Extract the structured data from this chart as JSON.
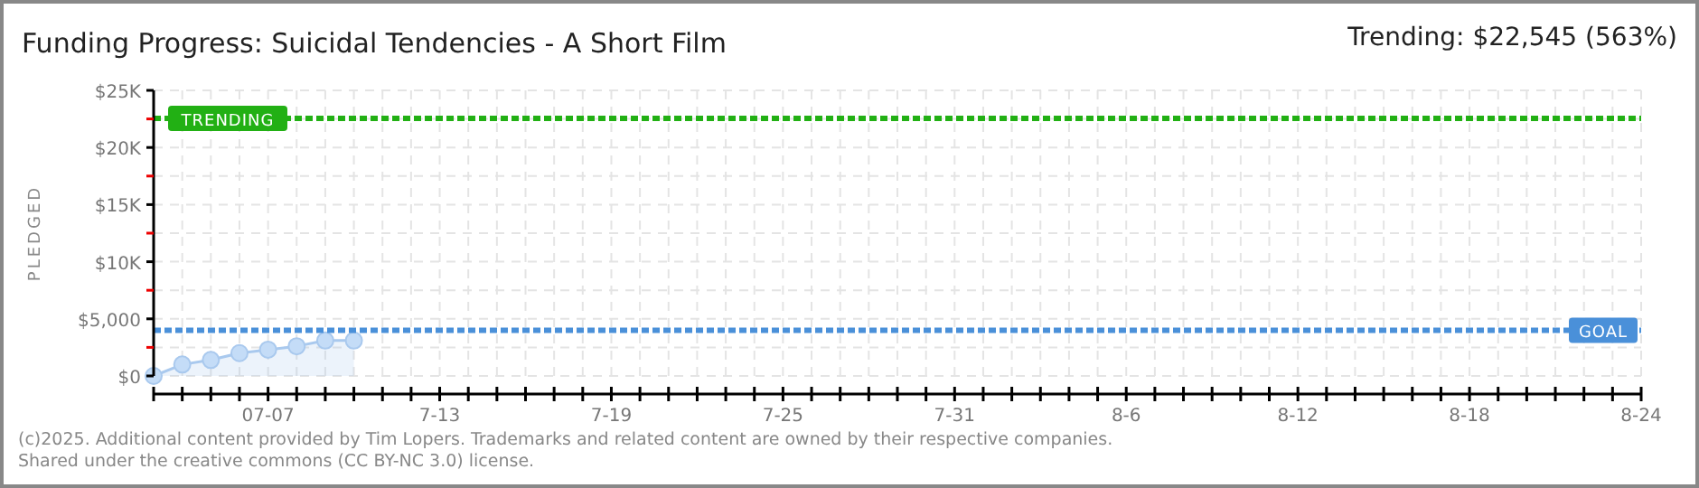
{
  "chart_data": {
    "type": "area",
    "title": "Funding Progress: Suicidal Tendencies - A Short Film",
    "subtitle": "Trending: $22,545 (563%)",
    "ylabel": "PLEDGED",
    "x": [
      "--07-03",
      "--07-04",
      "--07-05",
      "--07-06",
      "--07-07",
      "--07-08",
      "--07-09",
      "--07-10"
    ],
    "series": [
      {
        "color": "#a9c9ee",
        "values": [
          0,
          1000,
          1400,
          2000,
          2300,
          2600,
          3100,
          3100
        ]
      }
    ],
    "marker": "circle",
    "grid": true,
    "xlim": [
      "--07-03",
      "--08-24"
    ],
    "xticks": [
      {
        "value": "--07-03",
        "label": null
      },
      {
        "value": "--07-04",
        "label": null
      },
      {
        "value": "--07-05",
        "label": null
      },
      {
        "value": "--07-06",
        "label": null
      },
      {
        "value": "--07-07",
        "label": "07-07"
      },
      {
        "value": "--07-08",
        "label": null
      },
      {
        "value": "--07-09",
        "label": null
      },
      {
        "value": "--07-10",
        "label": null
      },
      {
        "value": "--07-11",
        "label": null
      },
      {
        "value": "--07-12",
        "label": null
      },
      {
        "value": "--07-13",
        "label": "7-13"
      },
      {
        "value": "--07-14",
        "label": null
      },
      {
        "value": "--07-15",
        "label": null
      },
      {
        "value": "--07-16",
        "label": null
      },
      {
        "value": "--07-17",
        "label": null
      },
      {
        "value": "--07-18",
        "label": null
      },
      {
        "value": "--07-19",
        "label": "7-19"
      },
      {
        "value": "--07-20",
        "label": null
      },
      {
        "value": "--07-21",
        "label": null
      },
      {
        "value": "--07-22",
        "label": null
      },
      {
        "value": "--07-23",
        "label": null
      },
      {
        "value": "--07-24",
        "label": null
      },
      {
        "value": "--07-25",
        "label": "7-25"
      },
      {
        "value": "--07-26",
        "label": null
      },
      {
        "value": "--07-27",
        "label": null
      },
      {
        "value": "--07-28",
        "label": null
      },
      {
        "value": "--07-29",
        "label": null
      },
      {
        "value": "--07-30",
        "label": null
      },
      {
        "value": "--07-31",
        "label": "7-31"
      },
      {
        "value": "--08-01",
        "label": null
      },
      {
        "value": "--08-02",
        "label": null
      },
      {
        "value": "--08-03",
        "label": null
      },
      {
        "value": "--08-04",
        "label": null
      },
      {
        "value": "--08-05",
        "label": null
      },
      {
        "value": "--08-06",
        "label": "8-6"
      },
      {
        "value": "--08-07",
        "label": null
      },
      {
        "value": "--08-08",
        "label": null
      },
      {
        "value": "--08-09",
        "label": null
      },
      {
        "value": "--08-10",
        "label": null
      },
      {
        "value": "--08-11",
        "label": null
      },
      {
        "value": "--08-12",
        "label": "8-12"
      },
      {
        "value": "--08-13",
        "label": null
      },
      {
        "value": "--08-14",
        "label": null
      },
      {
        "value": "--08-15",
        "label": null
      },
      {
        "value": "--08-16",
        "label": null
      },
      {
        "value": "--08-17",
        "label": null
      },
      {
        "value": "--08-18",
        "label": "8-18"
      },
      {
        "value": "--08-19",
        "label": null
      },
      {
        "value": "--08-20",
        "label": null
      },
      {
        "value": "--08-21",
        "label": null
      },
      {
        "value": "--08-22",
        "label": null
      },
      {
        "value": "--08-23",
        "label": null
      },
      {
        "value": "--08-24",
        "label": "8-24"
      }
    ],
    "ylim": [
      0,
      25000
    ],
    "yticks": [
      {
        "value": 0,
        "label": "$0"
      },
      {
        "value": 2500,
        "label": null
      },
      {
        "value": 5000,
        "label": "$5,000"
      },
      {
        "value": 7500,
        "label": null
      },
      {
        "value": 10000,
        "label": "$10K"
      },
      {
        "value": 12500,
        "label": null
      },
      {
        "value": 15000,
        "label": "$15K"
      },
      {
        "value": 17500,
        "label": null
      },
      {
        "value": 20000,
        "label": "$20K"
      },
      {
        "value": 22500,
        "label": null
      },
      {
        "value": 25000,
        "label": "$25K"
      }
    ],
    "ref_lines": [
      {
        "axis": "y",
        "value": 22545,
        "label": "TRENDING",
        "color": "#22b014"
      },
      {
        "axis": "y",
        "value": 4000,
        "label": "GOAL",
        "color": "#4a90d9"
      }
    ],
    "annotations": [
      "(c)2025. Additional content provided by Tim Lopers. Trademarks and related content are owned by their respective companies.",
      "Shared under the creative commons (CC BY-NC 3.0) license."
    ]
  }
}
